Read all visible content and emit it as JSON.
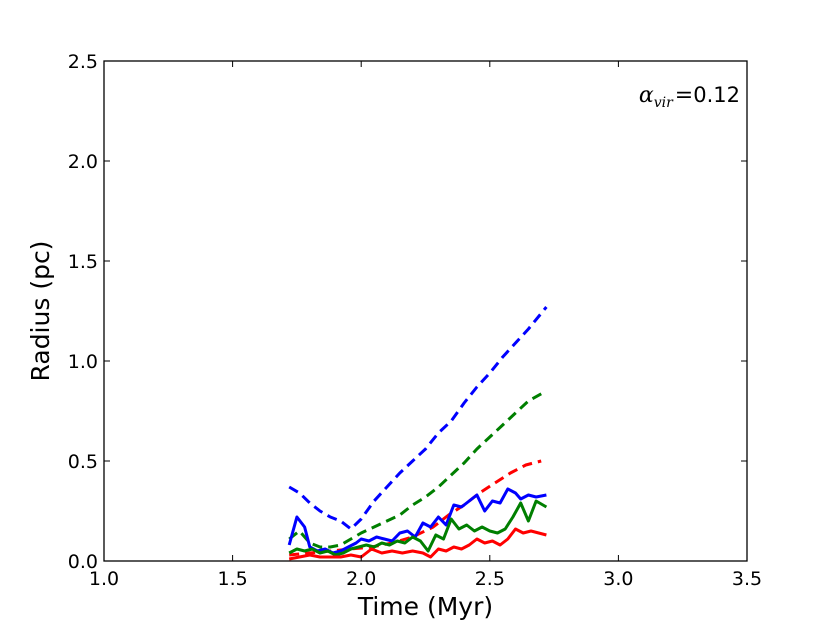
{
  "chart_data": {
    "type": "line",
    "xlabel": "Time (Myr)",
    "ylabel": "Radius (pc)",
    "xlim": [
      1.0,
      3.5
    ],
    "ylim": [
      0.0,
      2.5
    ],
    "xticks": [
      "1.0",
      "1.5",
      "2.0",
      "2.5",
      "3.0",
      "3.5"
    ],
    "yticks": [
      "0.0",
      "0.5",
      "1.0",
      "1.5",
      "2.0",
      "2.5"
    ],
    "grid": false,
    "legend": "none",
    "annotation": {
      "symbol": "α",
      "subscript": "vir",
      "equals": "=",
      "value": "0.12",
      "placement": "top-right"
    },
    "series": [
      {
        "color": "#0000ff",
        "style": "dashed",
        "x": [
          1.72,
          1.76,
          1.8,
          1.84,
          1.88,
          1.92,
          1.96,
          2.0,
          2.05,
          2.1,
          2.15,
          2.2,
          2.25,
          2.3,
          2.35,
          2.4,
          2.45,
          2.5,
          2.55,
          2.6,
          2.65,
          2.72
        ],
        "y": [
          0.37,
          0.34,
          0.29,
          0.25,
          0.22,
          0.2,
          0.16,
          0.21,
          0.3,
          0.37,
          0.44,
          0.5,
          0.56,
          0.64,
          0.7,
          0.79,
          0.87,
          0.94,
          1.02,
          1.09,
          1.16,
          1.27
        ]
      },
      {
        "color": "#007f00",
        "style": "dashed",
        "x": [
          1.72,
          1.76,
          1.8,
          1.84,
          1.88,
          1.92,
          1.96,
          2.0,
          2.05,
          2.1,
          2.15,
          2.2,
          2.25,
          2.3,
          2.35,
          2.4,
          2.45,
          2.5,
          2.55,
          2.6,
          2.65,
          2.72
        ],
        "y": [
          0.11,
          0.15,
          0.09,
          0.07,
          0.07,
          0.08,
          0.11,
          0.14,
          0.17,
          0.2,
          0.23,
          0.28,
          0.32,
          0.37,
          0.43,
          0.49,
          0.56,
          0.62,
          0.68,
          0.74,
          0.8,
          0.85
        ]
      },
      {
        "color": "#ff0000",
        "style": "dashed",
        "x": [
          1.72,
          1.8,
          1.88,
          1.96,
          2.04,
          2.12,
          2.2,
          2.28,
          2.34,
          2.4,
          2.46,
          2.52,
          2.58,
          2.64,
          2.7
        ],
        "y": [
          0.03,
          0.04,
          0.05,
          0.06,
          0.07,
          0.09,
          0.12,
          0.17,
          0.23,
          0.28,
          0.34,
          0.39,
          0.44,
          0.48,
          0.5
        ]
      },
      {
        "color": "#0000ff",
        "style": "solid",
        "x": [
          1.72,
          1.75,
          1.78,
          1.8,
          1.83,
          1.86,
          1.89,
          1.92,
          1.95,
          1.98,
          2.0,
          2.03,
          2.06,
          2.09,
          2.12,
          2.15,
          2.18,
          2.21,
          2.24,
          2.27,
          2.3,
          2.33,
          2.36,
          2.39,
          2.42,
          2.45,
          2.48,
          2.51,
          2.54,
          2.57,
          2.6,
          2.62,
          2.65,
          2.68,
          2.72
        ],
        "y": [
          0.08,
          0.22,
          0.17,
          0.07,
          0.05,
          0.06,
          0.04,
          0.05,
          0.07,
          0.09,
          0.11,
          0.1,
          0.12,
          0.11,
          0.1,
          0.14,
          0.15,
          0.12,
          0.19,
          0.17,
          0.22,
          0.18,
          0.28,
          0.27,
          0.3,
          0.33,
          0.25,
          0.3,
          0.29,
          0.36,
          0.34,
          0.31,
          0.33,
          0.32,
          0.33
        ]
      },
      {
        "color": "#007f00",
        "style": "solid",
        "x": [
          1.72,
          1.75,
          1.78,
          1.81,
          1.84,
          1.87,
          1.9,
          1.93,
          1.96,
          1.99,
          2.02,
          2.05,
          2.08,
          2.11,
          2.14,
          2.17,
          2.2,
          2.23,
          2.26,
          2.29,
          2.32,
          2.35,
          2.38,
          2.41,
          2.44,
          2.47,
          2.5,
          2.53,
          2.56,
          2.59,
          2.62,
          2.65,
          2.68,
          2.72
        ],
        "y": [
          0.04,
          0.06,
          0.05,
          0.06,
          0.04,
          0.05,
          0.03,
          0.04,
          0.06,
          0.07,
          0.08,
          0.07,
          0.09,
          0.08,
          0.1,
          0.09,
          0.12,
          0.1,
          0.05,
          0.13,
          0.11,
          0.21,
          0.16,
          0.18,
          0.15,
          0.17,
          0.15,
          0.14,
          0.16,
          0.22,
          0.29,
          0.2,
          0.3,
          0.27
        ]
      },
      {
        "color": "#ff0000",
        "style": "solid",
        "x": [
          1.72,
          1.76,
          1.8,
          1.84,
          1.88,
          1.92,
          1.96,
          2.0,
          2.04,
          2.08,
          2.12,
          2.16,
          2.2,
          2.24,
          2.27,
          2.3,
          2.33,
          2.36,
          2.39,
          2.42,
          2.45,
          2.48,
          2.51,
          2.54,
          2.57,
          2.6,
          2.63,
          2.66,
          2.69,
          2.72
        ],
        "y": [
          0.01,
          0.02,
          0.03,
          0.02,
          0.02,
          0.02,
          0.03,
          0.02,
          0.06,
          0.04,
          0.05,
          0.04,
          0.05,
          0.04,
          0.02,
          0.06,
          0.05,
          0.07,
          0.06,
          0.08,
          0.11,
          0.09,
          0.1,
          0.08,
          0.11,
          0.16,
          0.14,
          0.15,
          0.14,
          0.13
        ]
      }
    ]
  }
}
